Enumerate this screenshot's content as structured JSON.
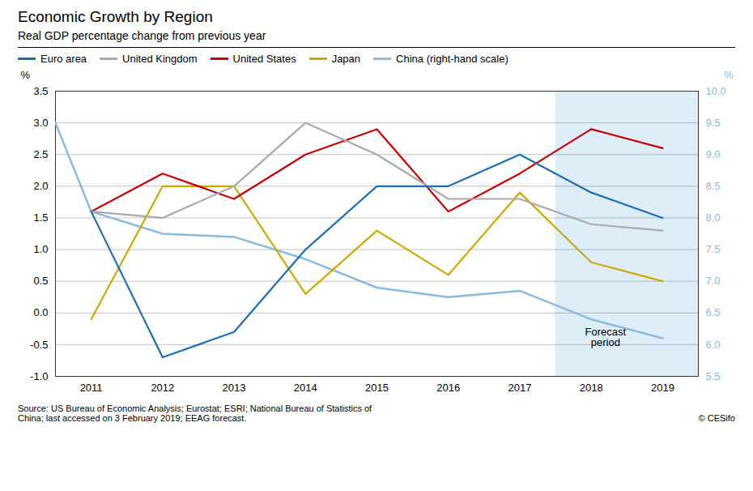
{
  "chart_data": {
    "type": "line",
    "title": "Economic Growth by Region",
    "subtitle": "Real GDP percentage change from previous year",
    "source": "Source: US Bureau of Economic Analysis; Eurostat; ESRI; National Bureau of Statistics of\nChina; last accessed on 3 February 2019;  EEAG forecast.",
    "copyright": "© CESifo",
    "xlim": [
      2010.5,
      2019.5
    ],
    "xticks": [
      2011,
      2012,
      2013,
      2014,
      2015,
      2016,
      2017,
      2018,
      2019
    ],
    "ylim": [
      -1.0,
      3.5
    ],
    "yticks": [
      {
        "value": -1.0,
        "label": "-1.0"
      },
      -0.5,
      {
        "value": 0.0,
        "label": "0.0"
      },
      0.5,
      {
        "value": 1.0,
        "label": "1.0"
      },
      1.5,
      {
        "value": 2.0,
        "label": "2.0"
      },
      2.5,
      {
        "value": 3.0,
        "label": "3.0"
      },
      3.5
    ],
    "y2lim": [
      5.5,
      10.0
    ],
    "y2ticks": [
      5.5,
      {
        "value": 6.0,
        "label": "6.0"
      },
      6.5,
      {
        "value": 7.0,
        "label": "7.0"
      },
      7.5,
      {
        "value": 8.0,
        "label": "8.0"
      },
      8.5,
      {
        "value": 9.0,
        "label": "9.0"
      },
      9.5,
      {
        "value": 10.0,
        "label": "10.0"
      }
    ],
    "ylabel": "%",
    "y2label": "%",
    "grid": true,
    "legend": "top",
    "series": [
      {
        "name": "Euro area",
        "color": "#1a6fba",
        "x": [
          2011,
          2012,
          2013,
          2014,
          2015,
          2016,
          2017,
          2018,
          2019
        ],
        "values": [
          1.6,
          -0.7,
          -0.3,
          1.0,
          2.0,
          2.0,
          2.5,
          1.9,
          1.5
        ]
      },
      {
        "name": "United Kingdom",
        "color": "#aaaaaa",
        "x": [
          2011,
          2012,
          2013,
          2014,
          2015,
          2016,
          2017,
          2018,
          2019
        ],
        "values": [
          1.6,
          1.5,
          2.0,
          3.0,
          2.5,
          1.8,
          1.8,
          1.4,
          1.3
        ]
      },
      {
        "name": "United States",
        "color": "#cc0000",
        "x": [
          2011,
          2012,
          2013,
          2014,
          2015,
          2016,
          2017,
          2018,
          2019
        ],
        "values": [
          1.6,
          2.2,
          1.8,
          2.5,
          2.9,
          1.6,
          2.2,
          2.9,
          2.6
        ]
      },
      {
        "name": "Japan",
        "color": "#ccaa00",
        "x": [
          2011,
          2012,
          2013,
          2014,
          2015,
          2016,
          2017,
          2018,
          2019
        ],
        "values": [
          -0.1,
          2.0,
          2.0,
          0.3,
          1.3,
          0.6,
          1.9,
          0.8,
          0.5
        ]
      },
      {
        "name": "China (right-hand scale)",
        "color": "#88bbdd",
        "axis": "y2",
        "x": [
          2010.5,
          2011,
          2012,
          2013,
          2014,
          2015,
          2016,
          2017,
          2018,
          2019
        ],
        "values": [
          9.5,
          8.1,
          7.75,
          7.7,
          7.35,
          6.9,
          6.75,
          6.85,
          6.4,
          6.1
        ]
      }
    ],
    "shaded_regions": [
      {
        "x0": 2017.5,
        "x1": 2019.5,
        "color": "#ddeef8"
      }
    ],
    "annotations": [
      {
        "text": "Forecast\nperiod",
        "x": 2018.2,
        "y": -0.38
      }
    ]
  }
}
